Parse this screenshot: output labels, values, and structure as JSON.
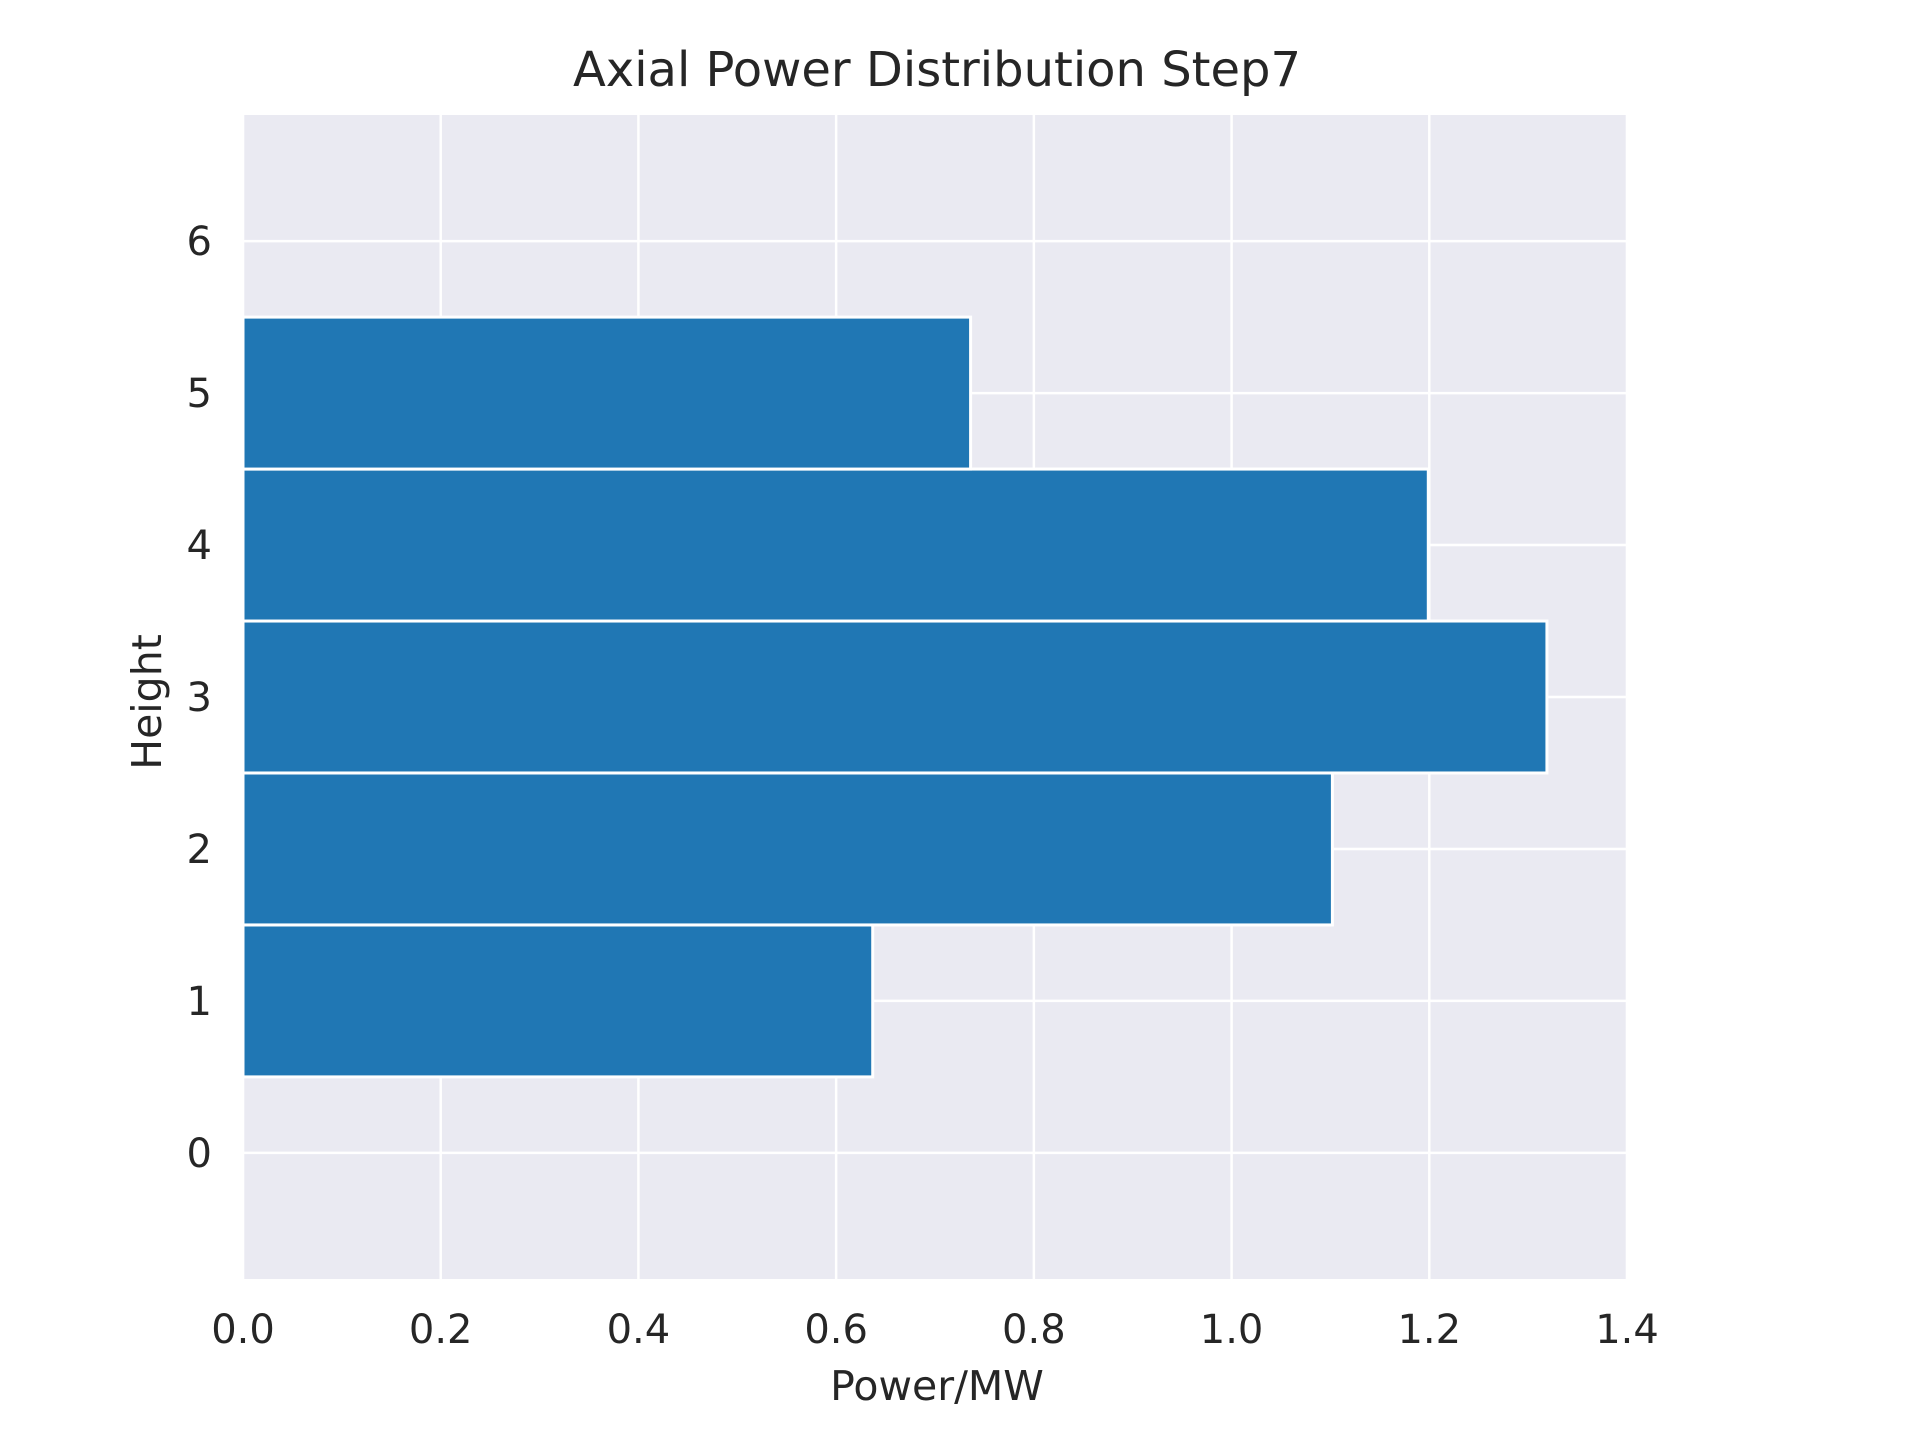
{
  "chart_data": {
    "type": "bar",
    "orientation": "horizontal",
    "title": "Axial Power Distribution Step7",
    "xlabel": "Power/MW",
    "ylabel": "Height",
    "categories": [
      1,
      2,
      3,
      4,
      5
    ],
    "values": [
      0.637,
      1.102,
      1.319,
      1.199,
      0.736
    ],
    "bar_height": 1.0,
    "xlim": [
      0.0,
      1.4
    ],
    "ylim": [
      -0.83,
      6.83
    ],
    "x_ticks": [
      "0.0",
      "0.2",
      "0.4",
      "0.6",
      "0.8",
      "1.0",
      "1.2",
      "1.4"
    ],
    "y_ticks": [
      "0",
      "1",
      "2",
      "3",
      "4",
      "5",
      "6"
    ],
    "grid": true,
    "colors": {
      "bar": "#2077b4",
      "plot_background": "#eaeaf2",
      "grid": "#ffffff",
      "text": "#262626"
    }
  }
}
